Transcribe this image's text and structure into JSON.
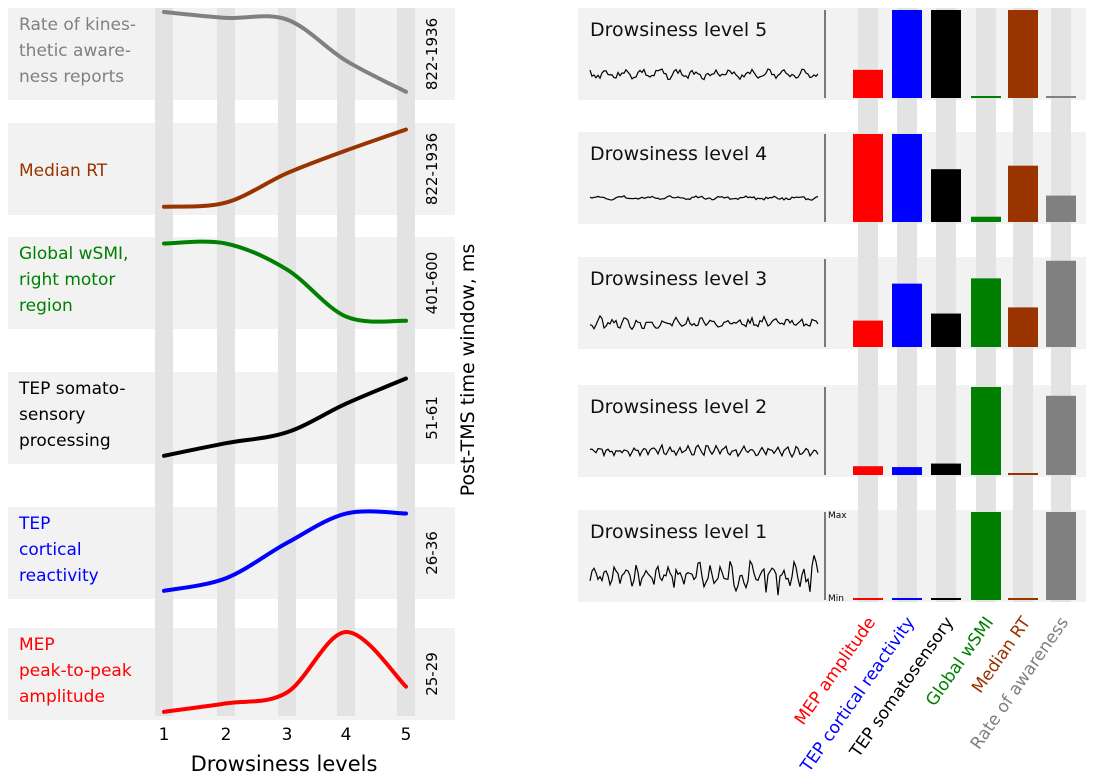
{
  "colors": {
    "mep": "#ff0000",
    "tep_cortical": "#0000ff",
    "tep_somato": "#000000",
    "wsmi": "#008000",
    "median_rt": "#993300",
    "awareness": "#808080",
    "panel_bg": "#f2f2f2",
    "level_stripe": "#e3e3e3"
  },
  "chart_data": [
    {
      "type": "line",
      "xlabel": "Drowsiness levels",
      "ylabel": "Post-TMS time window, ms",
      "x": [
        1,
        2,
        3,
        4,
        5
      ],
      "x_tick_labels": [
        "1",
        "2",
        "3",
        "4",
        "5"
      ],
      "ylim": [
        0,
        1
      ],
      "series": [
        {
          "name": "Rate of kines-|thetic aware-|ness reports",
          "color": "#808080",
          "time_window": "822-1936",
          "values": [
            1.0,
            0.93,
            0.91,
            0.42,
            0.05
          ]
        },
        {
          "name": "Median RT",
          "color": "#993300",
          "time_window": "822-1936",
          "values": [
            0.05,
            0.1,
            0.45,
            0.72,
            0.97
          ]
        },
        {
          "name": "Global wSMI,|right motor|region",
          "color": "#008000",
          "time_window": "401-600",
          "values": [
            0.97,
            0.97,
            0.66,
            0.1,
            0.05
          ]
        },
        {
          "name": "TEP somato-|sensory|processing",
          "color": "#000000",
          "time_window": "51-61",
          "values": [
            0.05,
            0.2,
            0.33,
            0.67,
            0.97
          ]
        },
        {
          "name": "TEP|cortical|reactivity",
          "color": "#0000ff",
          "time_window": "26-36",
          "values": [
            0.05,
            0.2,
            0.62,
            0.97,
            0.97
          ]
        },
        {
          "name": "MEP|peak-to-peak|amplitude",
          "color": "#ff0000",
          "time_window": "25-29",
          "values": [
            0.05,
            0.15,
            0.28,
            1.0,
            0.35
          ]
        }
      ]
    },
    {
      "type": "bar",
      "categories": [
        "MEP amplitude",
        "TEP cortical reactivity",
        "TEP somatosensory",
        "Global wSMI",
        "Median RT",
        "Rate of awareness"
      ],
      "category_colors": [
        "#ff0000",
        "#0000ff",
        "#000000",
        "#008000",
        "#993300",
        "#808080"
      ],
      "ylim": [
        0,
        1
      ],
      "y_axis_labels": {
        "max": "Max",
        "min": "Min"
      },
      "series": [
        {
          "name": "Drowsiness level 5",
          "values": [
            0.32,
            1.0,
            1.0,
            0.02,
            1.0,
            0.02
          ]
        },
        {
          "name": "Drowsiness level 4",
          "values": [
            1.0,
            1.0,
            0.6,
            0.06,
            0.64,
            0.3
          ]
        },
        {
          "name": "Drowsiness level 3",
          "values": [
            0.3,
            0.72,
            0.38,
            0.78,
            0.45,
            0.98
          ]
        },
        {
          "name": "Drowsiness level 2",
          "values": [
            0.1,
            0.09,
            0.13,
            1.0,
            0.02,
            0.9
          ]
        },
        {
          "name": "Drowsiness level 1",
          "values": [
            0.02,
            0.02,
            0.02,
            1.0,
            0.02,
            1.0
          ]
        }
      ]
    }
  ]
}
